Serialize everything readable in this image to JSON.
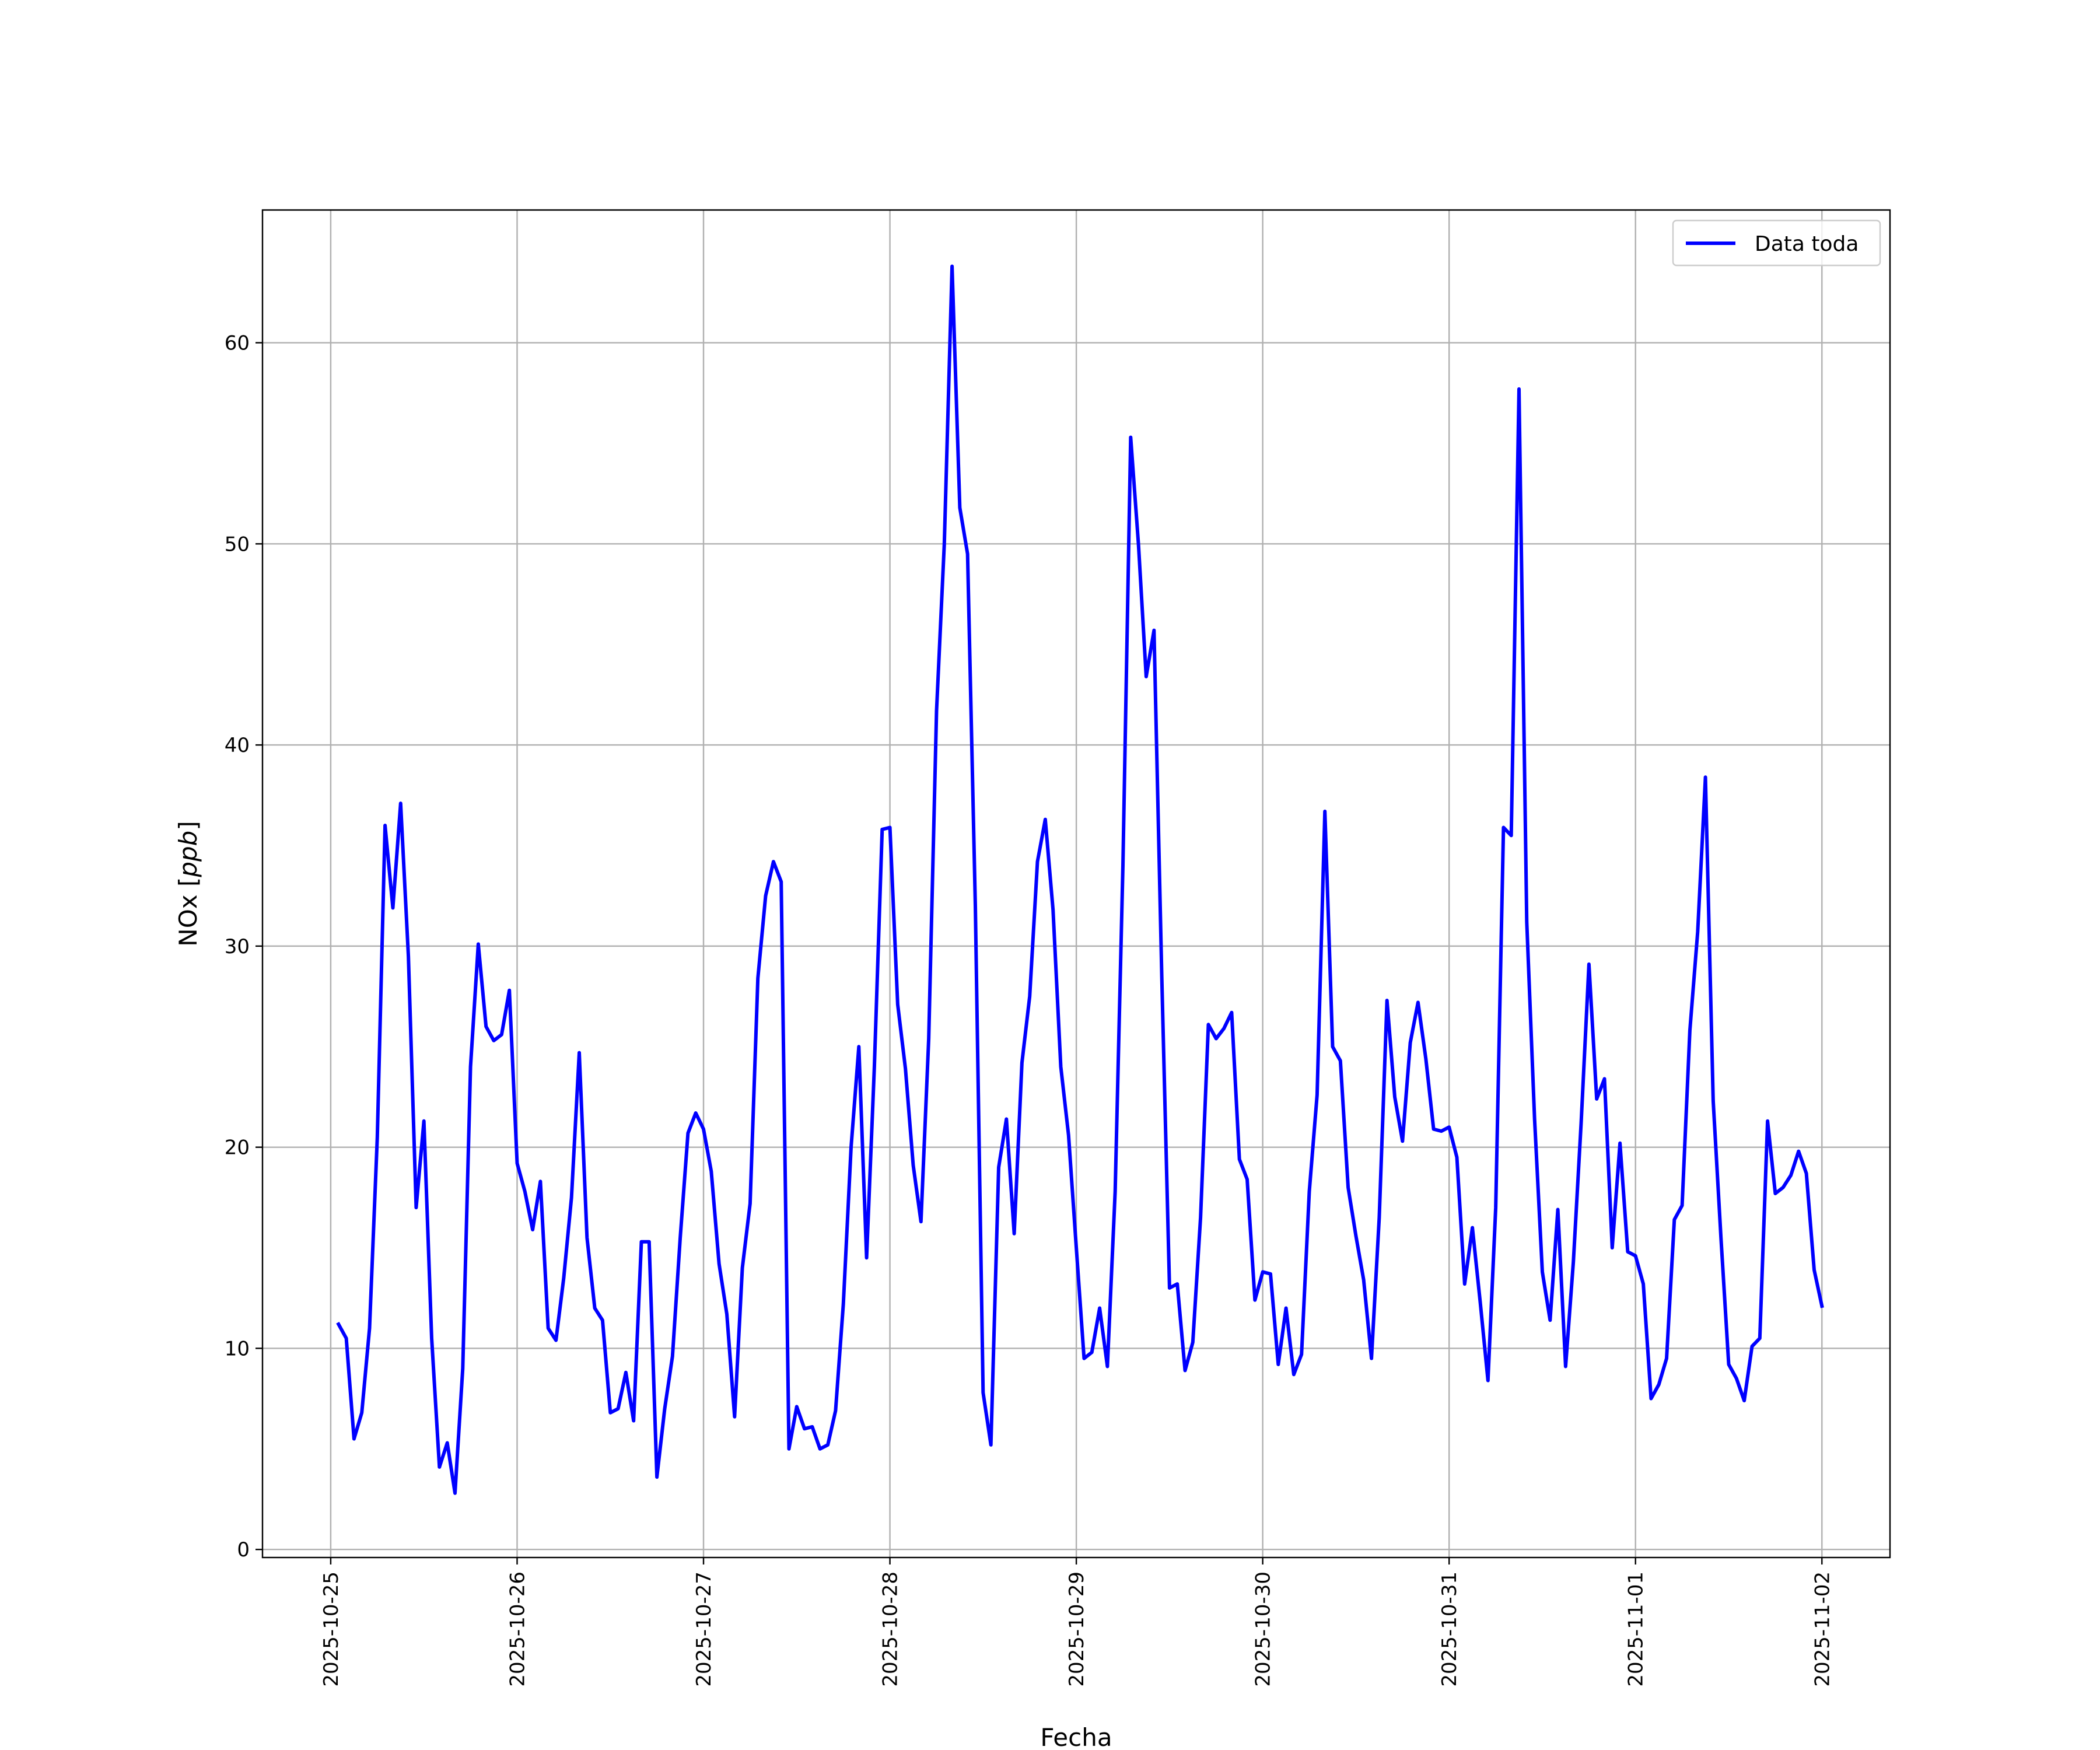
{
  "chart_data": {
    "type": "line",
    "title": "",
    "xlabel": "Fecha",
    "ylabel": "NOx [ppb]",
    "ylabel_main": "NOx ",
    "ylabel_unit": "ppb",
    "x_start": "2025-10-25T00:00",
    "x_end": "2025-11-02T00:00",
    "xlim": [
      "2025-10-24T15:13",
      "2025-11-02T08:46"
    ],
    "ylim": [
      -0.4,
      66.6
    ],
    "x_ticks": [
      "2025-10-25",
      "2025-10-26",
      "2025-10-27",
      "2025-10-28",
      "2025-10-29",
      "2025-10-30",
      "2025-10-31",
      "2025-11-01",
      "2025-11-02"
    ],
    "y_ticks": [
      0,
      10,
      20,
      30,
      40,
      50,
      60
    ],
    "y_tick_labels": [
      "0",
      "10",
      "20",
      "30",
      "40",
      "50",
      "60"
    ],
    "grid": true,
    "legend_position": "top-right",
    "series": [
      {
        "name": "Data toda",
        "color": "#0000ff",
        "x": [
          "2025-10-25T01:00",
          "2025-10-25T02:00",
          "2025-10-25T03:00",
          "2025-10-25T04:00",
          "2025-10-25T05:00",
          "2025-10-25T06:00",
          "2025-10-25T07:00",
          "2025-10-25T08:00",
          "2025-10-25T09:00",
          "2025-10-25T10:00",
          "2025-10-25T11:00",
          "2025-10-25T12:00",
          "2025-10-25T13:00",
          "2025-10-25T14:00",
          "2025-10-25T15:00",
          "2025-10-25T16:00",
          "2025-10-25T17:00",
          "2025-10-25T18:00",
          "2025-10-25T19:00",
          "2025-10-25T20:00",
          "2025-10-25T21:00",
          "2025-10-25T22:00",
          "2025-10-25T23:00",
          "2025-10-26T00:00",
          "2025-10-26T01:00",
          "2025-10-26T02:00",
          "2025-10-26T03:00",
          "2025-10-26T04:00",
          "2025-10-26T05:00",
          "2025-10-26T06:00",
          "2025-10-26T07:00",
          "2025-10-26T08:00",
          "2025-10-26T09:00",
          "2025-10-26T10:00",
          "2025-10-26T11:00",
          "2025-10-26T12:00",
          "2025-10-26T13:00",
          "2025-10-26T14:00",
          "2025-10-26T15:00",
          "2025-10-26T16:00",
          "2025-10-26T17:00",
          "2025-10-26T18:00",
          "2025-10-26T19:00",
          "2025-10-26T20:00",
          "2025-10-26T21:00",
          "2025-10-26T22:00",
          "2025-10-26T23:00",
          "2025-10-27T00:00",
          "2025-10-27T01:00",
          "2025-10-27T02:00",
          "2025-10-27T03:00",
          "2025-10-27T04:00",
          "2025-10-27T05:00",
          "2025-10-27T06:00",
          "2025-10-27T07:00",
          "2025-10-27T08:00",
          "2025-10-27T09:00",
          "2025-10-27T10:00",
          "2025-10-27T11:00",
          "2025-10-27T12:00",
          "2025-10-27T13:00",
          "2025-10-27T14:00",
          "2025-10-27T15:00",
          "2025-10-27T16:00",
          "2025-10-27T17:00",
          "2025-10-27T18:00",
          "2025-10-27T19:00",
          "2025-10-27T20:00",
          "2025-10-27T21:00",
          "2025-10-27T22:00",
          "2025-10-27T23:00",
          "2025-10-28T00:00",
          "2025-10-28T01:00",
          "2025-10-28T02:00",
          "2025-10-28T03:00",
          "2025-10-28T04:00",
          "2025-10-28T05:00",
          "2025-10-28T06:00",
          "2025-10-28T07:00",
          "2025-10-28T08:00",
          "2025-10-28T09:00",
          "2025-10-28T10:00",
          "2025-10-28T11:00",
          "2025-10-28T12:00",
          "2025-10-28T13:00",
          "2025-10-28T14:00",
          "2025-10-28T15:00",
          "2025-10-28T16:00",
          "2025-10-28T17:00",
          "2025-10-28T18:00",
          "2025-10-28T19:00",
          "2025-10-28T20:00",
          "2025-10-28T21:00",
          "2025-10-28T22:00",
          "2025-10-28T23:00",
          "2025-10-29T00:00",
          "2025-10-29T01:00",
          "2025-10-29T02:00",
          "2025-10-29T03:00",
          "2025-10-29T04:00",
          "2025-10-29T05:00",
          "2025-10-29T06:00",
          "2025-10-29T07:00",
          "2025-10-29T08:00",
          "2025-10-29T09:00",
          "2025-10-29T10:00",
          "2025-10-29T11:00",
          "2025-10-29T12:00",
          "2025-10-29T13:00",
          "2025-10-29T14:00",
          "2025-10-29T15:00",
          "2025-10-29T16:00",
          "2025-10-29T17:00",
          "2025-10-29T18:00",
          "2025-10-29T19:00",
          "2025-10-29T20:00",
          "2025-10-29T21:00",
          "2025-10-29T22:00",
          "2025-10-29T23:00",
          "2025-10-30T00:00",
          "2025-10-30T01:00",
          "2025-10-30T02:00",
          "2025-10-30T03:00",
          "2025-10-30T04:00",
          "2025-10-30T05:00",
          "2025-10-30T06:00",
          "2025-10-30T07:00",
          "2025-10-30T08:00",
          "2025-10-30T09:00",
          "2025-10-30T10:00",
          "2025-10-30T11:00",
          "2025-10-30T12:00",
          "2025-10-30T13:00",
          "2025-10-30T14:00",
          "2025-10-30T15:00",
          "2025-10-30T16:00",
          "2025-10-30T17:00",
          "2025-10-30T18:00",
          "2025-10-30T19:00",
          "2025-10-30T20:00",
          "2025-10-30T21:00",
          "2025-10-30T22:00",
          "2025-10-30T23:00",
          "2025-10-31T00:00",
          "2025-10-31T01:00",
          "2025-10-31T02:00",
          "2025-10-31T03:00",
          "2025-10-31T04:00",
          "2025-10-31T05:00",
          "2025-10-31T06:00",
          "2025-10-31T07:00",
          "2025-10-31T08:00",
          "2025-10-31T09:00",
          "2025-10-31T10:00",
          "2025-10-31T11:00",
          "2025-10-31T12:00",
          "2025-10-31T13:00",
          "2025-10-31T14:00",
          "2025-10-31T15:00",
          "2025-10-31T16:00",
          "2025-10-31T17:00",
          "2025-10-31T18:00",
          "2025-10-31T19:00",
          "2025-10-31T20:00",
          "2025-10-31T21:00",
          "2025-10-31T22:00",
          "2025-10-31T23:00",
          "2025-11-01T00:00",
          "2025-11-01T01:00",
          "2025-11-01T02:00",
          "2025-11-01T03:00",
          "2025-11-01T04:00",
          "2025-11-01T05:00",
          "2025-11-01T06:00",
          "2025-11-01T07:00",
          "2025-11-01T08:00",
          "2025-11-01T09:00",
          "2025-11-01T10:00",
          "2025-11-01T11:00",
          "2025-11-01T12:00",
          "2025-11-01T13:00",
          "2025-11-01T14:00",
          "2025-11-01T15:00",
          "2025-11-01T16:00",
          "2025-11-01T17:00",
          "2025-11-01T18:00",
          "2025-11-01T19:00",
          "2025-11-01T20:00",
          "2025-11-01T21:00",
          "2025-11-01T22:00",
          "2025-11-01T23:00",
          "2025-11-02T00:00"
        ],
        "y": [
          11.2,
          10.5,
          5.5,
          6.8,
          11.0,
          20.5,
          36.0,
          31.9,
          37.1,
          29.5,
          17.0,
          21.3,
          10.5,
          4.1,
          5.3,
          2.8,
          9.0,
          24.0,
          30.1,
          26.0,
          25.3,
          25.6,
          27.8,
          19.2,
          17.8,
          15.9,
          18.3,
          11.0,
          10.4,
          13.5,
          17.5,
          24.7,
          15.5,
          12.0,
          11.4,
          6.8,
          7.0,
          8.8,
          6.4,
          15.3,
          15.3,
          3.6,
          7.0,
          9.6,
          15.5,
          20.7,
          21.7,
          20.9,
          18.8,
          14.2,
          11.7,
          6.6,
          14.0,
          17.2,
          28.4,
          32.5,
          34.2,
          33.2,
          5.0,
          7.1,
          6.0,
          6.1,
          5.0,
          5.2,
          6.9,
          12.2,
          20.0,
          25.0,
          14.5,
          24.0,
          35.8,
          35.9,
          27.1,
          23.9,
          19.1,
          16.3,
          25.4,
          41.7,
          50.0,
          63.8,
          51.8,
          49.5,
          32.0,
          7.8,
          5.2,
          19.0,
          21.4,
          15.7,
          24.2,
          27.5,
          34.2,
          36.3,
          31.8,
          24.0,
          20.6,
          15.0,
          9.5,
          9.8,
          12.0,
          9.1,
          17.8,
          34.0,
          55.3,
          50.0,
          43.4,
          45.7,
          28.5,
          13.0,
          13.2,
          8.9,
          10.3,
          16.5,
          26.1,
          25.4,
          25.9,
          26.7,
          19.4,
          18.4,
          12.4,
          13.8,
          13.7,
          9.2,
          12.0,
          8.7,
          9.7,
          17.8,
          22.6,
          36.7,
          25.0,
          24.3,
          18.0,
          15.6,
          13.4,
          9.5,
          16.5,
          27.3,
          22.5,
          20.3,
          25.2,
          27.2,
          24.4,
          20.9,
          20.8,
          21.0,
          19.5,
          13.2,
          16.0,
          12.3,
          8.4,
          17.0,
          35.9,
          35.5,
          57.7,
          31.2,
          21.4,
          13.8,
          11.4,
          16.9,
          9.1,
          14.3,
          21.2,
          29.1,
          22.4,
          23.4,
          15.0,
          20.2,
          14.8,
          14.6,
          13.2,
          7.5,
          8.2,
          9.5,
          16.4,
          17.1,
          25.8,
          30.7,
          38.4,
          22.3,
          15.5,
          9.2,
          8.5,
          7.4,
          10.1,
          10.5,
          21.3,
          17.7,
          18.0,
          18.6,
          19.8,
          18.7,
          13.9,
          12.1
        ]
      }
    ]
  }
}
